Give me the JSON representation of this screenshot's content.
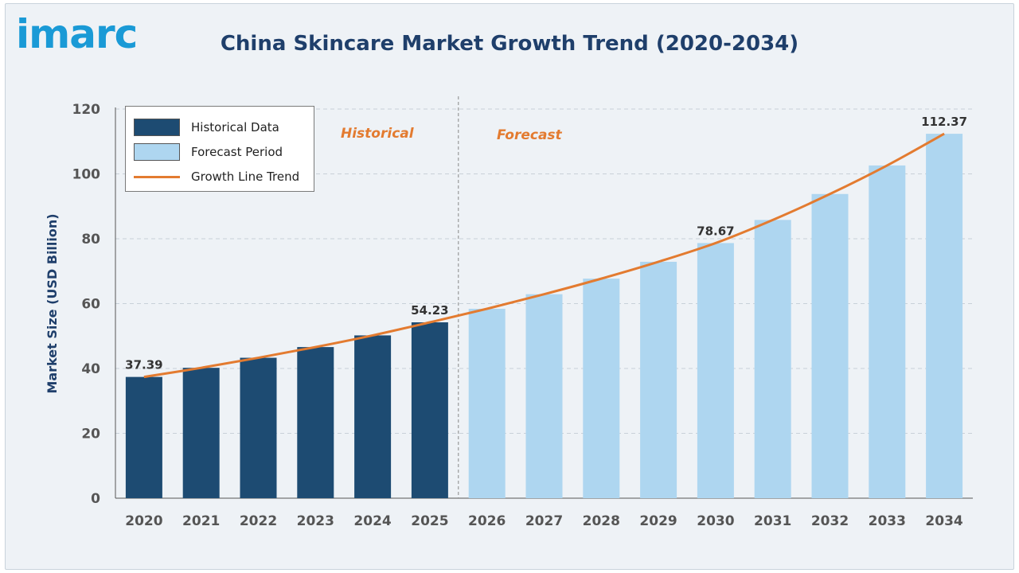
{
  "logo": {
    "text": "imarc"
  },
  "title": "China Skincare Market Growth Trend (2020-2034)",
  "legend": {
    "items": [
      {
        "label": "Historical Data",
        "color": "#1d4b72"
      },
      {
        "label": "Forecast Period",
        "color": "#aed6f0"
      },
      {
        "label": "Growth Line Trend",
        "color": "#e37b30"
      }
    ]
  },
  "region_labels": {
    "historical": "Historical",
    "forecast": "Forecast"
  },
  "chart_data": {
    "type": "bar",
    "title": "China Skincare Market Growth Trend (2020-2034)",
    "xlabel": "",
    "ylabel": "Market Size (USD Billion)",
    "ylim": [
      0,
      120
    ],
    "yticks": [
      0,
      20,
      40,
      60,
      80,
      100,
      120
    ],
    "grid": true,
    "legend_position": "top-left",
    "categories": [
      "2020",
      "2021",
      "2022",
      "2023",
      "2024",
      "2025",
      "2026",
      "2027",
      "2028",
      "2029",
      "2030",
      "2031",
      "2032",
      "2033",
      "2034"
    ],
    "values": [
      37.39,
      40.2,
      43.3,
      46.6,
      50.2,
      54.23,
      58.4,
      62.9,
      67.7,
      72.9,
      78.67,
      85.8,
      93.8,
      102.6,
      112.37
    ],
    "historical_count": 6,
    "colors": {
      "historical": "#1d4b72",
      "forecast": "#aed6f0",
      "trend": "#e37b30",
      "axis_text": "#555555",
      "ylabel": "#1f3f6b"
    },
    "data_labels": [
      {
        "category": "2020",
        "text": "37.39"
      },
      {
        "category": "2025",
        "text": "54.23"
      },
      {
        "category": "2030",
        "text": "78.67"
      },
      {
        "category": "2034",
        "text": "112.37"
      }
    ]
  }
}
